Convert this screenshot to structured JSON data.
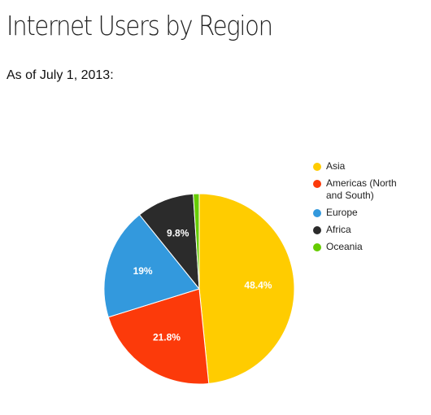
{
  "chart_data": {
    "type": "pie",
    "title": "Internet Users by Region",
    "subtitle": "As of July 1, 2013:",
    "categories": [
      "Asia",
      "Americas (North and South)",
      "Europe",
      "Africa",
      "Oceania"
    ],
    "values": [
      48.4,
      21.8,
      19,
      9.8,
      1.0
    ],
    "value_labels": [
      "48.4%",
      "21.8%",
      "19%",
      "9.8%",
      null
    ],
    "colors": [
      "#ffcc00",
      "#fc3a0a",
      "#3399dd",
      "#2b2b2b",
      "#66cc00"
    ],
    "legend": "right"
  }
}
